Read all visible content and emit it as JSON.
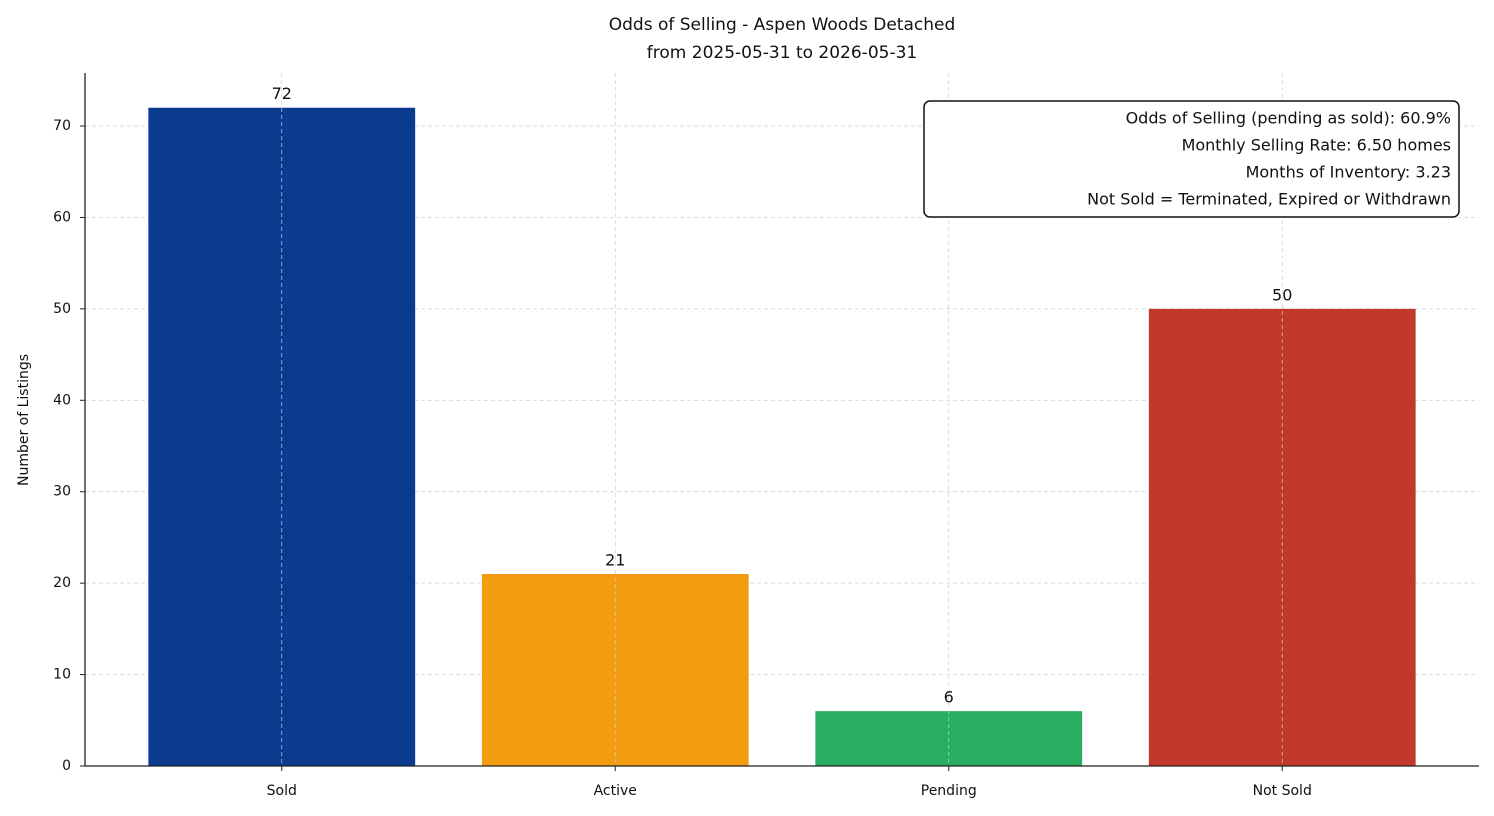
{
  "chart_data": {
    "type": "bar",
    "title": "Odds of Selling - Aspen Woods Detached",
    "subtitle": "from 2025-05-31 to 2026-05-31",
    "y_label": "Number of Listings",
    "categories": [
      "Sold",
      "Active",
      "Pending",
      "Not Sold"
    ],
    "values": [
      72,
      21,
      6,
      50
    ],
    "colors": [
      "#0b3b8f",
      "#f39c12",
      "#27ae60",
      "#c0392b"
    ],
    "ylim": [
      0,
      75.8
    ],
    "yticks": [
      0,
      10,
      20,
      30,
      40,
      50,
      60,
      70
    ],
    "grid": true,
    "annotation": [
      "Odds of Selling (pending as sold): 60.9%",
      "Monthly Selling Rate: 6.50 homes",
      "Months of Inventory: 3.23",
      "Not Sold = Terminated, Expired or Withdrawn"
    ]
  }
}
